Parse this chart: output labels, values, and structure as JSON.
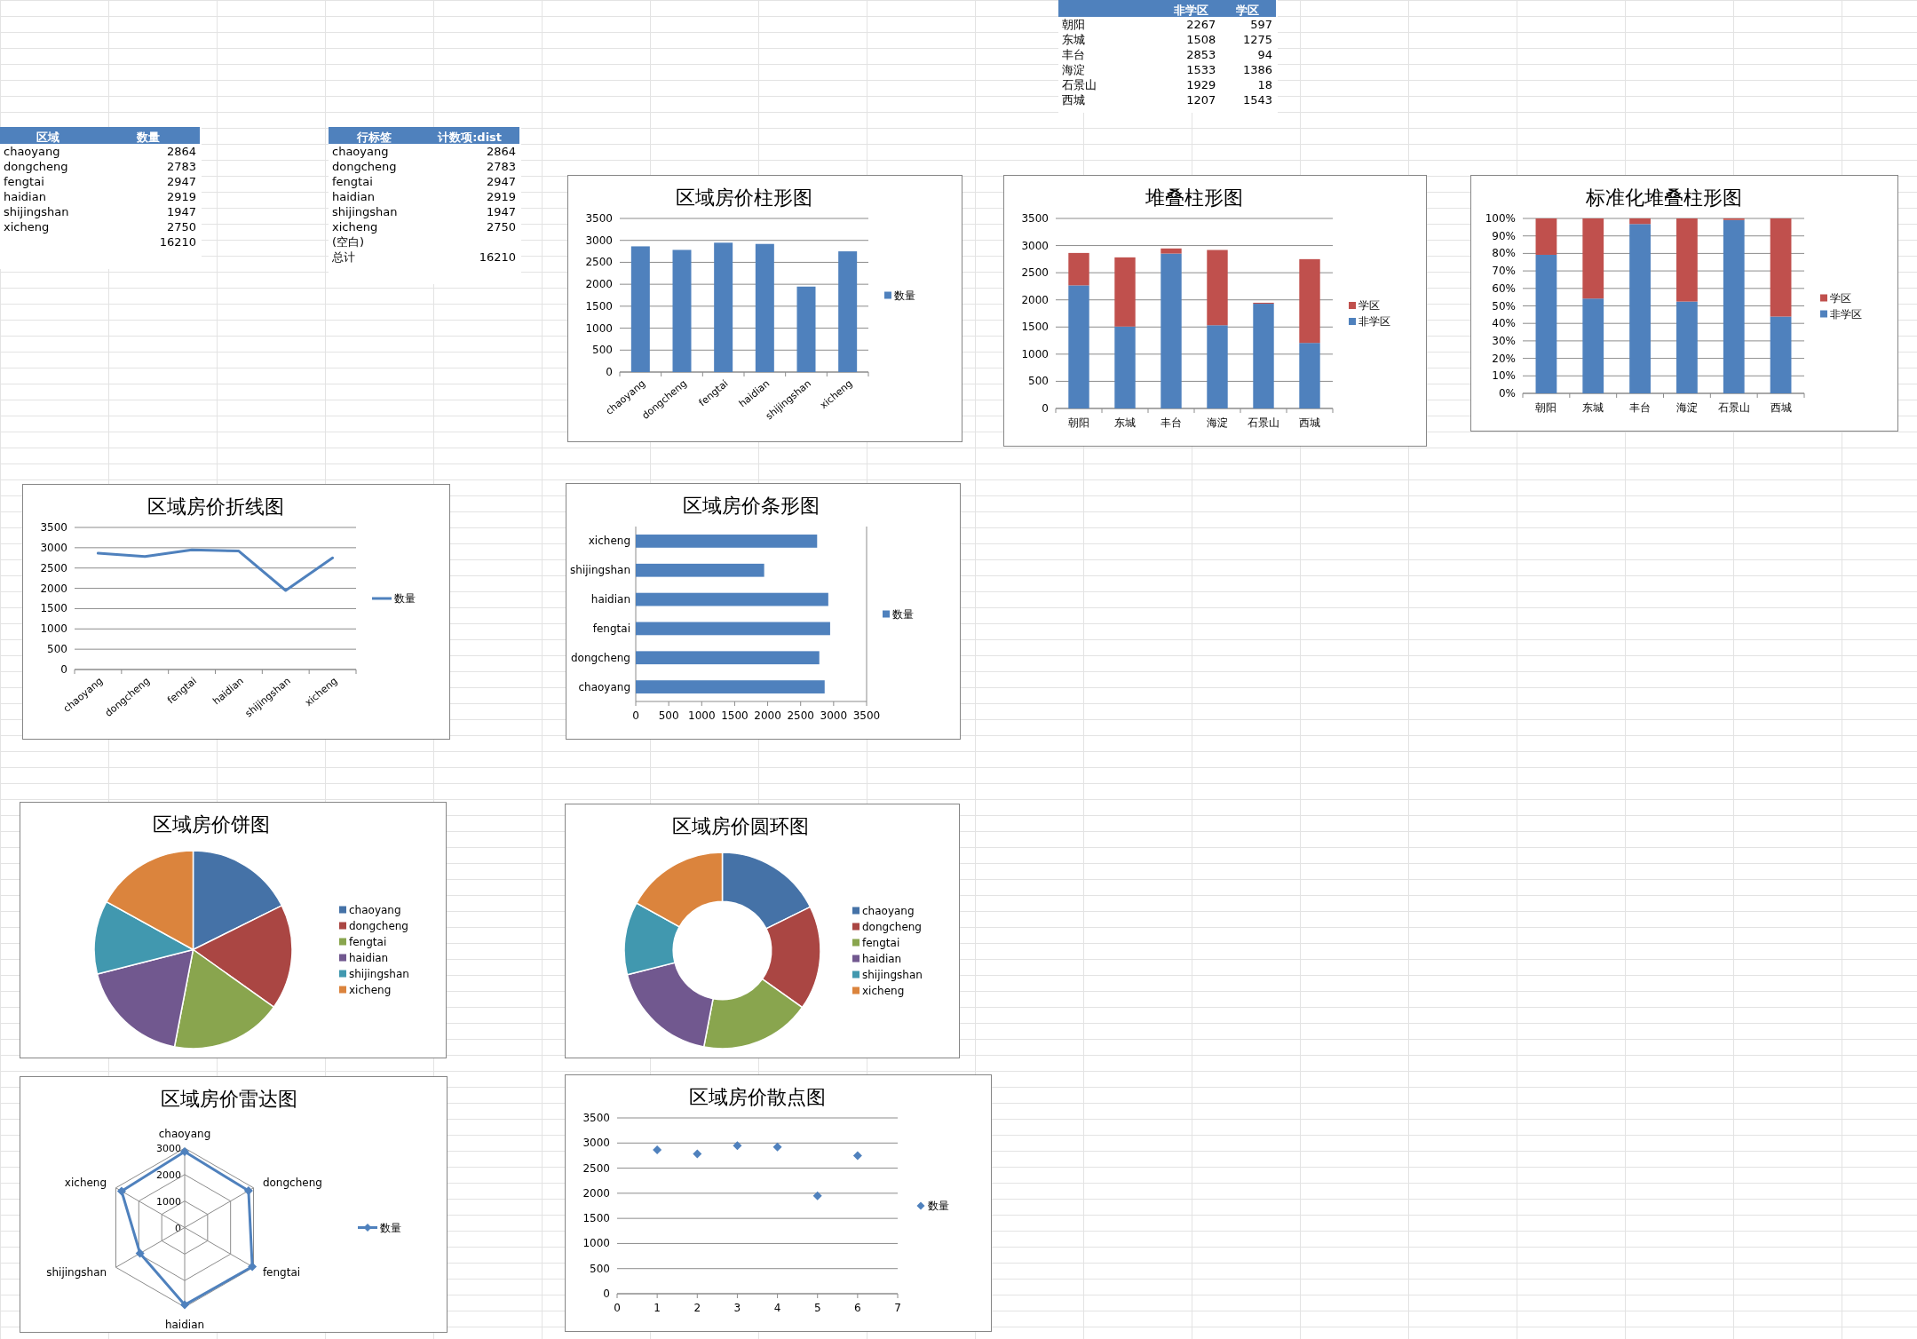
{
  "chart_data": [
    {
      "type": "other",
      "data_labels": true,
      "categories": [
        "朝阳",
        "东城",
        "丰台",
        "海淀",
        "石景山",
        "西城"
      ],
      "series": [
        {
          "name": "非学区",
          "values": [
            2267,
            1508,
            2853,
            1533,
            1929,
            1207
          ]
        },
        {
          "name": "学区",
          "values": [
            597,
            1275,
            94,
            1386,
            18,
            1543
          ]
        }
      ]
    },
    {
      "type": "other",
      "data_labels": true,
      "xlabel": "区域",
      "categories": [
        "chaoyang",
        "dongcheng",
        "fengtai",
        "haidian",
        "shijingshan",
        "xicheng"
      ],
      "series": [
        {
          "name": "数量",
          "values": [
            2864,
            2783,
            2947,
            2919,
            1947,
            2750
          ]
        }
      ],
      "annotations": [
        "16210"
      ]
    },
    {
      "type": "other",
      "data_labels": true,
      "xlabel": "行标签",
      "categories": [
        "chaoyang",
        "dongcheng",
        "fengtai",
        "haidian",
        "shijingshan",
        "xicheng",
        "(空白)",
        "总计"
      ],
      "series": [
        {
          "name": "计数项:dist",
          "values": [
            2864,
            2783,
            2947,
            2919,
            1947,
            2750,
            null,
            16210
          ]
        }
      ]
    },
    {
      "type": "bar",
      "title": "区域房价柱形图",
      "categories": [
        "chaoyang",
        "dongcheng",
        "fengtai",
        "haidian",
        "shijingshan",
        "xicheng"
      ],
      "series": [
        {
          "name": "数量",
          "color": "#4f81bd",
          "values": [
            2864,
            2783,
            2947,
            2919,
            1947,
            2750
          ]
        }
      ],
      "ylim": [
        0,
        3500
      ],
      "yticks": [
        0,
        500,
        1000,
        1500,
        2000,
        2500,
        3000,
        3500
      ],
      "grid": "y",
      "legend": "right"
    },
    {
      "type": "bar",
      "title": "堆叠柱形图",
      "stacked": true,
      "categories": [
        "朝阳",
        "东城",
        "丰台",
        "海淀",
        "石景山",
        "西城"
      ],
      "series": [
        {
          "name": "非学区",
          "color": "#4f81bd",
          "values": [
            2267,
            1508,
            2853,
            1533,
            1929,
            1207
          ]
        },
        {
          "name": "学区",
          "color": "#c0504d",
          "values": [
            597,
            1275,
            94,
            1386,
            18,
            1543
          ]
        }
      ],
      "ylim": [
        0,
        3500
      ],
      "yticks": [
        0,
        500,
        1000,
        1500,
        2000,
        2500,
        3000,
        3500
      ],
      "grid": "y",
      "legend": "right"
    },
    {
      "type": "bar",
      "title": "标准化堆叠柱形图",
      "stacked": true,
      "categories": [
        "朝阳",
        "东城",
        "丰台",
        "海淀",
        "石景山",
        "西城"
      ],
      "series": [
        {
          "name": "非学区",
          "color": "#4f81bd",
          "values": [
            79.2,
            54.2,
            96.8,
            52.5,
            99.1,
            43.9
          ]
        },
        {
          "name": "学区",
          "color": "#c0504d",
          "values": [
            20.8,
            45.8,
            3.2,
            47.5,
            0.9,
            56.1
          ]
        }
      ],
      "ylim": [
        0,
        100
      ],
      "yticks": [
        {
          "value": 0,
          "label": "0%"
        },
        {
          "value": 10,
          "label": "10%"
        },
        {
          "value": 20,
          "label": "20%"
        },
        {
          "value": 30,
          "label": "30%"
        },
        {
          "value": 40,
          "label": "40%"
        },
        {
          "value": 50,
          "label": "50%"
        },
        {
          "value": 60,
          "label": "60%"
        },
        {
          "value": 70,
          "label": "70%"
        },
        {
          "value": 80,
          "label": "80%"
        },
        {
          "value": 90,
          "label": "90%"
        },
        {
          "value": 100,
          "label": "100%"
        }
      ],
      "grid": "y",
      "legend": "right"
    },
    {
      "type": "line",
      "title": "区域房价折线图",
      "categories": [
        "chaoyang",
        "dongcheng",
        "fengtai",
        "haidian",
        "shijingshan",
        "xicheng"
      ],
      "series": [
        {
          "name": "数量",
          "color": "#4f81bd",
          "values": [
            2864,
            2783,
            2947,
            2919,
            1947,
            2750
          ]
        }
      ],
      "ylim": [
        0,
        3500
      ],
      "yticks": [
        0,
        500,
        1000,
        1500,
        2000,
        2500,
        3000,
        3500
      ],
      "grid": "y",
      "legend": "right",
      "line_style": "solid"
    },
    {
      "type": "bar",
      "title": "区域房价条形图",
      "orientation": "horizontal",
      "categories": [
        "xicheng",
        "shijingshan",
        "haidian",
        "fengtai",
        "dongcheng",
        "chaoyang"
      ],
      "series": [
        {
          "name": "数量",
          "color": "#4f81bd",
          "values": [
            2750,
            1947,
            2919,
            2947,
            2783,
            2864
          ]
        }
      ],
      "xlim": [
        0,
        3500
      ],
      "xticks": [
        0,
        500,
        1000,
        1500,
        2000,
        2500,
        3000,
        3500
      ],
      "legend": "right"
    },
    {
      "type": "pie",
      "title": "区域房价饼图",
      "categories": [
        "chaoyang",
        "dongcheng",
        "fengtai",
        "haidian",
        "shijingshan",
        "xicheng"
      ],
      "values": [
        17.67,
        17.17,
        18.18,
        18.01,
        12.01,
        16.96
      ],
      "colors": [
        "#4572a7",
        "#aa4643",
        "#89a54e",
        "#71588f",
        "#4198af",
        "#db843d"
      ],
      "legend": "right"
    },
    {
      "type": "donut",
      "title": "区域房价圆环图",
      "categories": [
        "chaoyang",
        "dongcheng",
        "fengtai",
        "haidian",
        "shijingshan",
        "xicheng"
      ],
      "values": [
        17.67,
        17.17,
        18.18,
        18.01,
        12.01,
        16.96
      ],
      "colors": [
        "#4572a7",
        "#aa4643",
        "#89a54e",
        "#71588f",
        "#4198af",
        "#db843d"
      ],
      "legend": "right"
    },
    {
      "type": "radar",
      "title": "区域房价雷达图",
      "categories": [
        "chaoyang",
        "dongcheng",
        "fengtai",
        "haidian",
        "shijingshan",
        "xicheng"
      ],
      "series": [
        {
          "name": "数量",
          "color": "#4f81bd",
          "values": [
            2864,
            2783,
            2947,
            2919,
            1947,
            2750
          ]
        }
      ],
      "ylim": [
        0,
        3000
      ],
      "yticks": [
        0,
        1000,
        2000,
        3000
      ],
      "marker": "diamond",
      "legend": "right"
    },
    {
      "type": "scatter",
      "title": "区域房价散点图",
      "x": [
        1,
        2,
        3,
        4,
        5,
        6
      ],
      "series": [
        {
          "name": "数量",
          "color": "#4f81bd",
          "values": [
            2864,
            2783,
            2947,
            2919,
            1947,
            2750
          ]
        }
      ],
      "xlim": [
        0,
        7
      ],
      "xticks": [
        0,
        1,
        2,
        3,
        4,
        5,
        6,
        7
      ],
      "ylim": [
        0,
        3500
      ],
      "yticks": [
        0,
        500,
        1000,
        1500,
        2000,
        2500,
        3000,
        3500
      ],
      "grid": "y",
      "marker": "diamond",
      "legend": "right"
    }
  ]
}
